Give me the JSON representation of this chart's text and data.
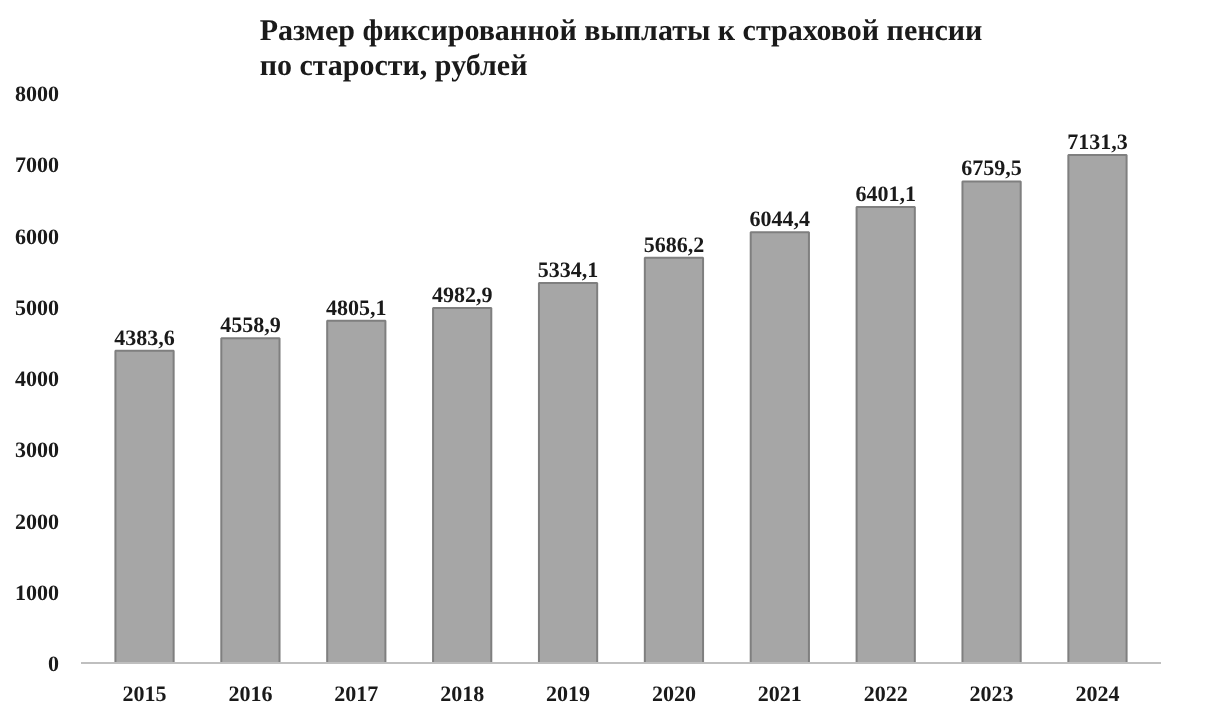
{
  "chart_data": {
    "type": "bar",
    "title": "Размер фиксированной выплаты к страховой пенсии\nпо старости, рублей",
    "categories": [
      "2015",
      "2016",
      "2017",
      "2018",
      "2019",
      "2020",
      "2021",
      "2022",
      "2023",
      "2024"
    ],
    "values": [
      4383.6,
      4558.9,
      4805.1,
      4982.9,
      5334.1,
      5686.2,
      6044.4,
      6401.1,
      6759.5,
      7131.3
    ],
    "value_labels": [
      "4383,6",
      "4558,9",
      "4805,1",
      "4982,9",
      "5334,1",
      "5686,2",
      "6044,4",
      "6401,1",
      "6759,5",
      "7131,3"
    ],
    "color": "#a6a6a6",
    "ylim": [
      0,
      8000
    ],
    "yticks": [
      0,
      1000,
      2000,
      3000,
      4000,
      5000,
      6000,
      7000,
      8000
    ],
    "grid": false
  }
}
